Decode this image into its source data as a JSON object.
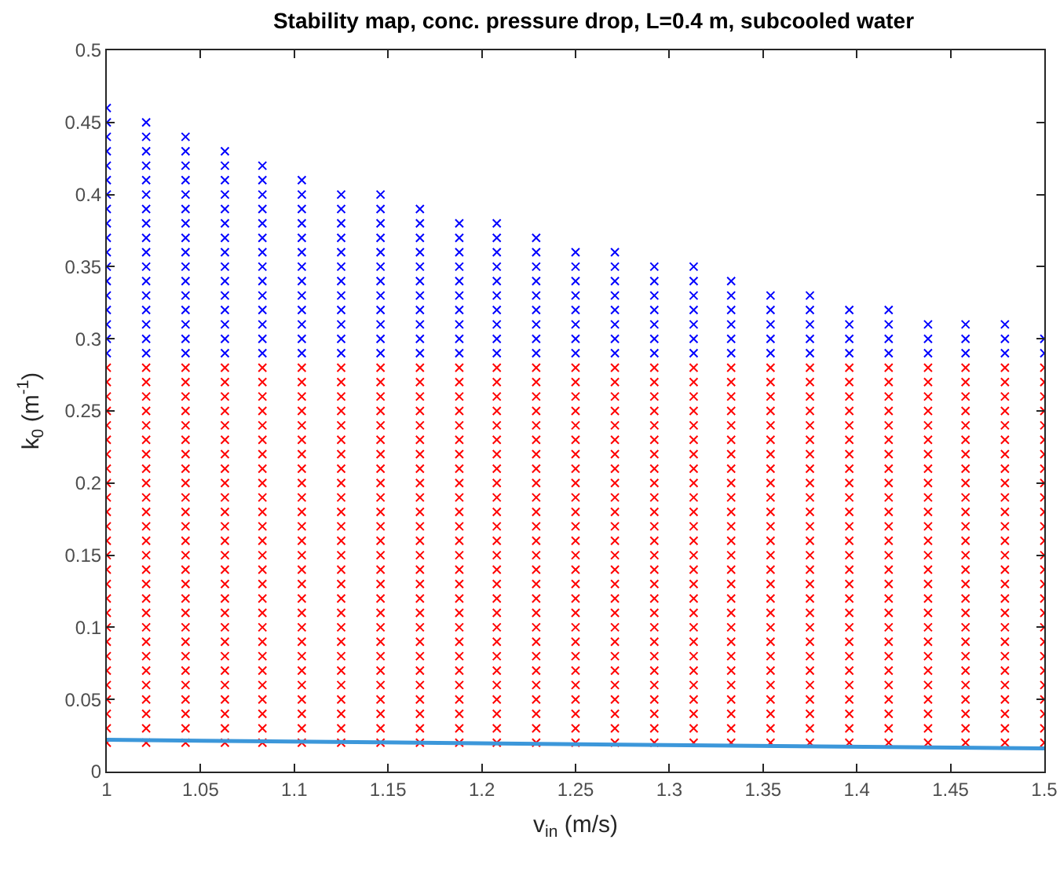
{
  "chart_data": {
    "type": "scatter",
    "title": "Stability map, conc. pressure drop, L=0.4 m, subcooled water",
    "xlabel": "v$_{in}$ (m/s)",
    "ylabel": "k$_{0}$ (m$^{-1}$)",
    "xlim": [
      1,
      1.5
    ],
    "xticks": [
      1,
      1.05,
      1.1,
      1.15,
      1.2,
      1.25,
      1.3,
      1.35,
      1.4,
      1.45,
      1.5
    ],
    "ylim": [
      0,
      0.5
    ],
    "yticks": [
      0,
      0.05,
      0.1,
      0.15,
      0.2,
      0.25,
      0.3,
      0.35,
      0.4,
      0.45,
      0.5
    ],
    "grid": false,
    "marker": "cross",
    "series": [
      {
        "color": "#ff0000",
        "x": [
          1,
          1,
          1,
          1,
          1,
          1,
          1,
          1,
          1,
          1,
          1,
          1,
          1,
          1,
          1,
          1,
          1,
          1,
          1,
          1,
          1,
          1,
          1,
          1,
          1,
          1,
          1
        ],
        "values": [
          0.02,
          0.03,
          0.04,
          0.05,
          0.06,
          0.07,
          0.08,
          0.09,
          0.1,
          0.11,
          0.12,
          0.13,
          0.14,
          0.15,
          0.16,
          0.17,
          0.18,
          0.19,
          0.2,
          0.21,
          0.22,
          0.23,
          0.24,
          0.25,
          0.26,
          0.27,
          0.28
        ]
      },
      {
        "color": "#ff0000",
        "x": [
          1.021,
          1.021,
          1.021,
          1.021,
          1.021,
          1.021,
          1.021,
          1.021,
          1.021,
          1.021,
          1.021,
          1.021,
          1.021,
          1.021,
          1.021,
          1.021,
          1.021,
          1.021,
          1.021,
          1.021,
          1.021,
          1.021,
          1.021,
          1.021,
          1.021,
          1.021,
          1.021
        ],
        "values": [
          0.02,
          0.03,
          0.04,
          0.05,
          0.06,
          0.07,
          0.08,
          0.09,
          0.1,
          0.11,
          0.12,
          0.13,
          0.14,
          0.15,
          0.16,
          0.17,
          0.18,
          0.19,
          0.2,
          0.21,
          0.22,
          0.23,
          0.24,
          0.25,
          0.26,
          0.27,
          0.28
        ]
      },
      {
        "color": "#ff0000",
        "x": [
          1.042,
          1.042,
          1.042,
          1.042,
          1.042,
          1.042,
          1.042,
          1.042,
          1.042,
          1.042,
          1.042,
          1.042,
          1.042,
          1.042,
          1.042,
          1.042,
          1.042,
          1.042,
          1.042,
          1.042,
          1.042,
          1.042,
          1.042,
          1.042,
          1.042,
          1.042,
          1.042
        ],
        "values": [
          0.02,
          0.03,
          0.04,
          0.05,
          0.06,
          0.07,
          0.08,
          0.09,
          0.1,
          0.11,
          0.12,
          0.13,
          0.14,
          0.15,
          0.16,
          0.17,
          0.18,
          0.19,
          0.2,
          0.21,
          0.22,
          0.23,
          0.24,
          0.25,
          0.26,
          0.27,
          0.28
        ]
      },
      {
        "color": "#ff0000",
        "x": [
          1.063,
          1.063,
          1.063,
          1.063,
          1.063,
          1.063,
          1.063,
          1.063,
          1.063,
          1.063,
          1.063,
          1.063,
          1.063,
          1.063,
          1.063,
          1.063,
          1.063,
          1.063,
          1.063,
          1.063,
          1.063,
          1.063,
          1.063,
          1.063,
          1.063,
          1.063,
          1.063
        ],
        "values": [
          0.02,
          0.03,
          0.04,
          0.05,
          0.06,
          0.07,
          0.08,
          0.09,
          0.1,
          0.11,
          0.12,
          0.13,
          0.14,
          0.15,
          0.16,
          0.17,
          0.18,
          0.19,
          0.2,
          0.21,
          0.22,
          0.23,
          0.24,
          0.25,
          0.26,
          0.27,
          0.28
        ]
      },
      {
        "color": "#ff0000",
        "x": [
          1.083,
          1.083,
          1.083,
          1.083,
          1.083,
          1.083,
          1.083,
          1.083,
          1.083,
          1.083,
          1.083,
          1.083,
          1.083,
          1.083,
          1.083,
          1.083,
          1.083,
          1.083,
          1.083,
          1.083,
          1.083,
          1.083,
          1.083,
          1.083,
          1.083,
          1.083,
          1.083
        ],
        "values": [
          0.02,
          0.03,
          0.04,
          0.05,
          0.06,
          0.07,
          0.08,
          0.09,
          0.1,
          0.11,
          0.12,
          0.13,
          0.14,
          0.15,
          0.16,
          0.17,
          0.18,
          0.19,
          0.2,
          0.21,
          0.22,
          0.23,
          0.24,
          0.25,
          0.26,
          0.27,
          0.28
        ]
      },
      {
        "color": "#ff0000",
        "x": [
          1.104,
          1.104,
          1.104,
          1.104,
          1.104,
          1.104,
          1.104,
          1.104,
          1.104,
          1.104,
          1.104,
          1.104,
          1.104,
          1.104,
          1.104,
          1.104,
          1.104,
          1.104,
          1.104,
          1.104,
          1.104,
          1.104,
          1.104,
          1.104,
          1.104,
          1.104,
          1.104
        ],
        "values": [
          0.02,
          0.03,
          0.04,
          0.05,
          0.06,
          0.07,
          0.08,
          0.09,
          0.1,
          0.11,
          0.12,
          0.13,
          0.14,
          0.15,
          0.16,
          0.17,
          0.18,
          0.19,
          0.2,
          0.21,
          0.22,
          0.23,
          0.24,
          0.25,
          0.26,
          0.27,
          0.28
        ]
      },
      {
        "color": "#ff0000",
        "x": [
          1.125,
          1.125,
          1.125,
          1.125,
          1.125,
          1.125,
          1.125,
          1.125,
          1.125,
          1.125,
          1.125,
          1.125,
          1.125,
          1.125,
          1.125,
          1.125,
          1.125,
          1.125,
          1.125,
          1.125,
          1.125,
          1.125,
          1.125,
          1.125,
          1.125,
          1.125,
          1.125
        ],
        "values": [
          0.02,
          0.03,
          0.04,
          0.05,
          0.06,
          0.07,
          0.08,
          0.09,
          0.1,
          0.11,
          0.12,
          0.13,
          0.14,
          0.15,
          0.16,
          0.17,
          0.18,
          0.19,
          0.2,
          0.21,
          0.22,
          0.23,
          0.24,
          0.25,
          0.26,
          0.27,
          0.28
        ]
      },
      {
        "color": "#ff0000",
        "x": [
          1.146,
          1.146,
          1.146,
          1.146,
          1.146,
          1.146,
          1.146,
          1.146,
          1.146,
          1.146,
          1.146,
          1.146,
          1.146,
          1.146,
          1.146,
          1.146,
          1.146,
          1.146,
          1.146,
          1.146,
          1.146,
          1.146,
          1.146,
          1.146,
          1.146,
          1.146,
          1.146
        ],
        "values": [
          0.02,
          0.03,
          0.04,
          0.05,
          0.06,
          0.07,
          0.08,
          0.09,
          0.1,
          0.11,
          0.12,
          0.13,
          0.14,
          0.15,
          0.16,
          0.17,
          0.18,
          0.19,
          0.2,
          0.21,
          0.22,
          0.23,
          0.24,
          0.25,
          0.26,
          0.27,
          0.28
        ]
      },
      {
        "color": "#ff0000",
        "x": [
          1.167,
          1.167,
          1.167,
          1.167,
          1.167,
          1.167,
          1.167,
          1.167,
          1.167,
          1.167,
          1.167,
          1.167,
          1.167,
          1.167,
          1.167,
          1.167,
          1.167,
          1.167,
          1.167,
          1.167,
          1.167,
          1.167,
          1.167,
          1.167,
          1.167,
          1.167,
          1.167
        ],
        "values": [
          0.02,
          0.03,
          0.04,
          0.05,
          0.06,
          0.07,
          0.08,
          0.09,
          0.1,
          0.11,
          0.12,
          0.13,
          0.14,
          0.15,
          0.16,
          0.17,
          0.18,
          0.19,
          0.2,
          0.21,
          0.22,
          0.23,
          0.24,
          0.25,
          0.26,
          0.27,
          0.28
        ]
      },
      {
        "color": "#ff0000",
        "x": [
          1.188,
          1.188,
          1.188,
          1.188,
          1.188,
          1.188,
          1.188,
          1.188,
          1.188,
          1.188,
          1.188,
          1.188,
          1.188,
          1.188,
          1.188,
          1.188,
          1.188,
          1.188,
          1.188,
          1.188,
          1.188,
          1.188,
          1.188,
          1.188,
          1.188,
          1.188,
          1.188
        ],
        "values": [
          0.02,
          0.03,
          0.04,
          0.05,
          0.06,
          0.07,
          0.08,
          0.09,
          0.1,
          0.11,
          0.12,
          0.13,
          0.14,
          0.15,
          0.16,
          0.17,
          0.18,
          0.19,
          0.2,
          0.21,
          0.22,
          0.23,
          0.24,
          0.25,
          0.26,
          0.27,
          0.28
        ]
      },
      {
        "color": "#ff0000",
        "x": [
          1.208,
          1.208,
          1.208,
          1.208,
          1.208,
          1.208,
          1.208,
          1.208,
          1.208,
          1.208,
          1.208,
          1.208,
          1.208,
          1.208,
          1.208,
          1.208,
          1.208,
          1.208,
          1.208,
          1.208,
          1.208,
          1.208,
          1.208,
          1.208,
          1.208,
          1.208,
          1.208
        ],
        "values": [
          0.02,
          0.03,
          0.04,
          0.05,
          0.06,
          0.07,
          0.08,
          0.09,
          0.1,
          0.11,
          0.12,
          0.13,
          0.14,
          0.15,
          0.16,
          0.17,
          0.18,
          0.19,
          0.2,
          0.21,
          0.22,
          0.23,
          0.24,
          0.25,
          0.26,
          0.27,
          0.28
        ]
      },
      {
        "color": "#ff0000",
        "x": [
          1.229,
          1.229,
          1.229,
          1.229,
          1.229,
          1.229,
          1.229,
          1.229,
          1.229,
          1.229,
          1.229,
          1.229,
          1.229,
          1.229,
          1.229,
          1.229,
          1.229,
          1.229,
          1.229,
          1.229,
          1.229,
          1.229,
          1.229,
          1.229,
          1.229,
          1.229,
          1.229
        ],
        "values": [
          0.02,
          0.03,
          0.04,
          0.05,
          0.06,
          0.07,
          0.08,
          0.09,
          0.1,
          0.11,
          0.12,
          0.13,
          0.14,
          0.15,
          0.16,
          0.17,
          0.18,
          0.19,
          0.2,
          0.21,
          0.22,
          0.23,
          0.24,
          0.25,
          0.26,
          0.27,
          0.28
        ]
      },
      {
        "color": "#ff0000",
        "x": [
          1.25,
          1.25,
          1.25,
          1.25,
          1.25,
          1.25,
          1.25,
          1.25,
          1.25,
          1.25,
          1.25,
          1.25,
          1.25,
          1.25,
          1.25,
          1.25,
          1.25,
          1.25,
          1.25,
          1.25,
          1.25,
          1.25,
          1.25,
          1.25,
          1.25,
          1.25,
          1.25
        ],
        "values": [
          0.02,
          0.03,
          0.04,
          0.05,
          0.06,
          0.07,
          0.08,
          0.09,
          0.1,
          0.11,
          0.12,
          0.13,
          0.14,
          0.15,
          0.16,
          0.17,
          0.18,
          0.19,
          0.2,
          0.21,
          0.22,
          0.23,
          0.24,
          0.25,
          0.26,
          0.27,
          0.28
        ]
      },
      {
        "color": "#ff0000",
        "x": [
          1.271,
          1.271,
          1.271,
          1.271,
          1.271,
          1.271,
          1.271,
          1.271,
          1.271,
          1.271,
          1.271,
          1.271,
          1.271,
          1.271,
          1.271,
          1.271,
          1.271,
          1.271,
          1.271,
          1.271,
          1.271,
          1.271,
          1.271,
          1.271,
          1.271,
          1.271,
          1.271
        ],
        "values": [
          0.02,
          0.03,
          0.04,
          0.05,
          0.06,
          0.07,
          0.08,
          0.09,
          0.1,
          0.11,
          0.12,
          0.13,
          0.14,
          0.15,
          0.16,
          0.17,
          0.18,
          0.19,
          0.2,
          0.21,
          0.22,
          0.23,
          0.24,
          0.25,
          0.26,
          0.27,
          0.28
        ]
      },
      {
        "color": "#ff0000",
        "x": [
          1.292,
          1.292,
          1.292,
          1.292,
          1.292,
          1.292,
          1.292,
          1.292,
          1.292,
          1.292,
          1.292,
          1.292,
          1.292,
          1.292,
          1.292,
          1.292,
          1.292,
          1.292,
          1.292,
          1.292,
          1.292,
          1.292,
          1.292,
          1.292,
          1.292,
          1.292,
          1.292
        ],
        "values": [
          0.02,
          0.03,
          0.04,
          0.05,
          0.06,
          0.07,
          0.08,
          0.09,
          0.1,
          0.11,
          0.12,
          0.13,
          0.14,
          0.15,
          0.16,
          0.17,
          0.18,
          0.19,
          0.2,
          0.21,
          0.22,
          0.23,
          0.24,
          0.25,
          0.26,
          0.27,
          0.28
        ]
      },
      {
        "color": "#ff0000",
        "x": [
          1.313,
          1.313,
          1.313,
          1.313,
          1.313,
          1.313,
          1.313,
          1.313,
          1.313,
          1.313,
          1.313,
          1.313,
          1.313,
          1.313,
          1.313,
          1.313,
          1.313,
          1.313,
          1.313,
          1.313,
          1.313,
          1.313,
          1.313,
          1.313,
          1.313,
          1.313,
          1.313
        ],
        "values": [
          0.02,
          0.03,
          0.04,
          0.05,
          0.06,
          0.07,
          0.08,
          0.09,
          0.1,
          0.11,
          0.12,
          0.13,
          0.14,
          0.15,
          0.16,
          0.17,
          0.18,
          0.19,
          0.2,
          0.21,
          0.22,
          0.23,
          0.24,
          0.25,
          0.26,
          0.27,
          0.28
        ]
      },
      {
        "color": "#ff0000",
        "x": [
          1.333,
          1.333,
          1.333,
          1.333,
          1.333,
          1.333,
          1.333,
          1.333,
          1.333,
          1.333,
          1.333,
          1.333,
          1.333,
          1.333,
          1.333,
          1.333,
          1.333,
          1.333,
          1.333,
          1.333,
          1.333,
          1.333,
          1.333,
          1.333,
          1.333,
          1.333,
          1.333
        ],
        "values": [
          0.02,
          0.03,
          0.04,
          0.05,
          0.06,
          0.07,
          0.08,
          0.09,
          0.1,
          0.11,
          0.12,
          0.13,
          0.14,
          0.15,
          0.16,
          0.17,
          0.18,
          0.19,
          0.2,
          0.21,
          0.22,
          0.23,
          0.24,
          0.25,
          0.26,
          0.27,
          0.28
        ]
      },
      {
        "color": "#ff0000",
        "x": [
          1.354,
          1.354,
          1.354,
          1.354,
          1.354,
          1.354,
          1.354,
          1.354,
          1.354,
          1.354,
          1.354,
          1.354,
          1.354,
          1.354,
          1.354,
          1.354,
          1.354,
          1.354,
          1.354,
          1.354,
          1.354,
          1.354,
          1.354,
          1.354,
          1.354,
          1.354,
          1.354
        ],
        "values": [
          0.02,
          0.03,
          0.04,
          0.05,
          0.06,
          0.07,
          0.08,
          0.09,
          0.1,
          0.11,
          0.12,
          0.13,
          0.14,
          0.15,
          0.16,
          0.17,
          0.18,
          0.19,
          0.2,
          0.21,
          0.22,
          0.23,
          0.24,
          0.25,
          0.26,
          0.27,
          0.28
        ]
      },
      {
        "color": "#ff0000",
        "x": [
          1.375,
          1.375,
          1.375,
          1.375,
          1.375,
          1.375,
          1.375,
          1.375,
          1.375,
          1.375,
          1.375,
          1.375,
          1.375,
          1.375,
          1.375,
          1.375,
          1.375,
          1.375,
          1.375,
          1.375,
          1.375,
          1.375,
          1.375,
          1.375,
          1.375,
          1.375,
          1.375
        ],
        "values": [
          0.02,
          0.03,
          0.04,
          0.05,
          0.06,
          0.07,
          0.08,
          0.09,
          0.1,
          0.11,
          0.12,
          0.13,
          0.14,
          0.15,
          0.16,
          0.17,
          0.18,
          0.19,
          0.2,
          0.21,
          0.22,
          0.23,
          0.24,
          0.25,
          0.26,
          0.27,
          0.28
        ]
      },
      {
        "color": "#ff0000",
        "x": [
          1.396,
          1.396,
          1.396,
          1.396,
          1.396,
          1.396,
          1.396,
          1.396,
          1.396,
          1.396,
          1.396,
          1.396,
          1.396,
          1.396,
          1.396,
          1.396,
          1.396,
          1.396,
          1.396,
          1.396,
          1.396,
          1.396,
          1.396,
          1.396,
          1.396,
          1.396,
          1.396
        ],
        "values": [
          0.02,
          0.03,
          0.04,
          0.05,
          0.06,
          0.07,
          0.08,
          0.09,
          0.1,
          0.11,
          0.12,
          0.13,
          0.14,
          0.15,
          0.16,
          0.17,
          0.18,
          0.19,
          0.2,
          0.21,
          0.22,
          0.23,
          0.24,
          0.25,
          0.26,
          0.27,
          0.28
        ]
      },
      {
        "color": "#ff0000",
        "x": [
          1.417,
          1.417,
          1.417,
          1.417,
          1.417,
          1.417,
          1.417,
          1.417,
          1.417,
          1.417,
          1.417,
          1.417,
          1.417,
          1.417,
          1.417,
          1.417,
          1.417,
          1.417,
          1.417,
          1.417,
          1.417,
          1.417,
          1.417,
          1.417,
          1.417,
          1.417,
          1.417
        ],
        "values": [
          0.02,
          0.03,
          0.04,
          0.05,
          0.06,
          0.07,
          0.08,
          0.09,
          0.1,
          0.11,
          0.12,
          0.13,
          0.14,
          0.15,
          0.16,
          0.17,
          0.18,
          0.19,
          0.2,
          0.21,
          0.22,
          0.23,
          0.24,
          0.25,
          0.26,
          0.27,
          0.28
        ]
      },
      {
        "color": "#ff0000",
        "x": [
          1.438,
          1.438,
          1.438,
          1.438,
          1.438,
          1.438,
          1.438,
          1.438,
          1.438,
          1.438,
          1.438,
          1.438,
          1.438,
          1.438,
          1.438,
          1.438,
          1.438,
          1.438,
          1.438,
          1.438,
          1.438,
          1.438,
          1.438,
          1.438,
          1.438,
          1.438,
          1.438
        ],
        "values": [
          0.02,
          0.03,
          0.04,
          0.05,
          0.06,
          0.07,
          0.08,
          0.09,
          0.1,
          0.11,
          0.12,
          0.13,
          0.14,
          0.15,
          0.16,
          0.17,
          0.18,
          0.19,
          0.2,
          0.21,
          0.22,
          0.23,
          0.24,
          0.25,
          0.26,
          0.27,
          0.28
        ]
      },
      {
        "color": "#ff0000",
        "x": [
          1.458,
          1.458,
          1.458,
          1.458,
          1.458,
          1.458,
          1.458,
          1.458,
          1.458,
          1.458,
          1.458,
          1.458,
          1.458,
          1.458,
          1.458,
          1.458,
          1.458,
          1.458,
          1.458,
          1.458,
          1.458,
          1.458,
          1.458,
          1.458,
          1.458,
          1.458,
          1.458
        ],
        "values": [
          0.02,
          0.03,
          0.04,
          0.05,
          0.06,
          0.07,
          0.08,
          0.09,
          0.1,
          0.11,
          0.12,
          0.13,
          0.14,
          0.15,
          0.16,
          0.17,
          0.18,
          0.19,
          0.2,
          0.21,
          0.22,
          0.23,
          0.24,
          0.25,
          0.26,
          0.27,
          0.28
        ]
      },
      {
        "color": "#ff0000",
        "x": [
          1.479,
          1.479,
          1.479,
          1.479,
          1.479,
          1.479,
          1.479,
          1.479,
          1.479,
          1.479,
          1.479,
          1.479,
          1.479,
          1.479,
          1.479,
          1.479,
          1.479,
          1.479,
          1.479,
          1.479,
          1.479,
          1.479,
          1.479,
          1.479,
          1.479,
          1.479,
          1.479
        ],
        "values": [
          0.02,
          0.03,
          0.04,
          0.05,
          0.06,
          0.07,
          0.08,
          0.09,
          0.1,
          0.11,
          0.12,
          0.13,
          0.14,
          0.15,
          0.16,
          0.17,
          0.18,
          0.19,
          0.2,
          0.21,
          0.22,
          0.23,
          0.24,
          0.25,
          0.26,
          0.27,
          0.28
        ]
      },
      {
        "color": "#ff0000",
        "x": [
          1.5,
          1.5,
          1.5,
          1.5,
          1.5,
          1.5,
          1.5,
          1.5,
          1.5,
          1.5,
          1.5,
          1.5,
          1.5,
          1.5,
          1.5,
          1.5,
          1.5,
          1.5,
          1.5,
          1.5,
          1.5,
          1.5,
          1.5,
          1.5,
          1.5,
          1.5,
          1.5
        ],
        "values": [
          0.02,
          0.03,
          0.04,
          0.05,
          0.06,
          0.07,
          0.08,
          0.09,
          0.1,
          0.11,
          0.12,
          0.13,
          0.14,
          0.15,
          0.16,
          0.17,
          0.18,
          0.19,
          0.2,
          0.21,
          0.22,
          0.23,
          0.24,
          0.25,
          0.26,
          0.27,
          0.28
        ]
      },
      {
        "color": "#0000ff",
        "x": [
          1,
          1,
          1,
          1,
          1,
          1,
          1,
          1,
          1,
          1,
          1,
          1,
          1,
          1,
          1,
          1,
          1,
          1
        ],
        "values": [
          0.29,
          0.3,
          0.31,
          0.32,
          0.33,
          0.34,
          0.35,
          0.36,
          0.37,
          0.38,
          0.39,
          0.4,
          0.41,
          0.42,
          0.43,
          0.44,
          0.45,
          0.46
        ]
      },
      {
        "color": "#0000ff",
        "x": [
          1.021,
          1.021,
          1.021,
          1.021,
          1.021,
          1.021,
          1.021,
          1.021,
          1.021,
          1.021,
          1.021,
          1.021,
          1.021,
          1.021,
          1.021,
          1.021,
          1.021
        ],
        "values": [
          0.29,
          0.3,
          0.31,
          0.32,
          0.33,
          0.34,
          0.35,
          0.36,
          0.37,
          0.38,
          0.39,
          0.4,
          0.41,
          0.42,
          0.43,
          0.44,
          0.45
        ]
      },
      {
        "color": "#0000ff",
        "x": [
          1.042,
          1.042,
          1.042,
          1.042,
          1.042,
          1.042,
          1.042,
          1.042,
          1.042,
          1.042,
          1.042,
          1.042,
          1.042,
          1.042,
          1.042,
          1.042
        ],
        "values": [
          0.29,
          0.3,
          0.31,
          0.32,
          0.33,
          0.34,
          0.35,
          0.36,
          0.37,
          0.38,
          0.39,
          0.4,
          0.41,
          0.42,
          0.43,
          0.44
        ]
      },
      {
        "color": "#0000ff",
        "x": [
          1.063,
          1.063,
          1.063,
          1.063,
          1.063,
          1.063,
          1.063,
          1.063,
          1.063,
          1.063,
          1.063,
          1.063,
          1.063,
          1.063,
          1.063
        ],
        "values": [
          0.29,
          0.3,
          0.31,
          0.32,
          0.33,
          0.34,
          0.35,
          0.36,
          0.37,
          0.38,
          0.39,
          0.4,
          0.41,
          0.42,
          0.43
        ]
      },
      {
        "color": "#0000ff",
        "x": [
          1.083,
          1.083,
          1.083,
          1.083,
          1.083,
          1.083,
          1.083,
          1.083,
          1.083,
          1.083,
          1.083,
          1.083,
          1.083,
          1.083
        ],
        "values": [
          0.29,
          0.3,
          0.31,
          0.32,
          0.33,
          0.34,
          0.35,
          0.36,
          0.37,
          0.38,
          0.39,
          0.4,
          0.41,
          0.42
        ]
      },
      {
        "color": "#0000ff",
        "x": [
          1.104,
          1.104,
          1.104,
          1.104,
          1.104,
          1.104,
          1.104,
          1.104,
          1.104,
          1.104,
          1.104,
          1.104,
          1.104
        ],
        "values": [
          0.29,
          0.3,
          0.31,
          0.32,
          0.33,
          0.34,
          0.35,
          0.36,
          0.37,
          0.38,
          0.39,
          0.4,
          0.41
        ]
      },
      {
        "color": "#0000ff",
        "x": [
          1.125,
          1.125,
          1.125,
          1.125,
          1.125,
          1.125,
          1.125,
          1.125,
          1.125,
          1.125,
          1.125,
          1.125
        ],
        "values": [
          0.29,
          0.3,
          0.31,
          0.32,
          0.33,
          0.34,
          0.35,
          0.36,
          0.37,
          0.38,
          0.39,
          0.4
        ]
      },
      {
        "color": "#0000ff",
        "x": [
          1.146,
          1.146,
          1.146,
          1.146,
          1.146,
          1.146,
          1.146,
          1.146,
          1.146,
          1.146,
          1.146,
          1.146
        ],
        "values": [
          0.29,
          0.3,
          0.31,
          0.32,
          0.33,
          0.34,
          0.35,
          0.36,
          0.37,
          0.38,
          0.39,
          0.4
        ]
      },
      {
        "color": "#0000ff",
        "x": [
          1.167,
          1.167,
          1.167,
          1.167,
          1.167,
          1.167,
          1.167,
          1.167,
          1.167,
          1.167,
          1.167
        ],
        "values": [
          0.29,
          0.3,
          0.31,
          0.32,
          0.33,
          0.34,
          0.35,
          0.36,
          0.37,
          0.38,
          0.39
        ]
      },
      {
        "color": "#0000ff",
        "x": [
          1.188,
          1.188,
          1.188,
          1.188,
          1.188,
          1.188,
          1.188,
          1.188,
          1.188,
          1.188
        ],
        "values": [
          0.29,
          0.3,
          0.31,
          0.32,
          0.33,
          0.34,
          0.35,
          0.36,
          0.37,
          0.38
        ]
      },
      {
        "color": "#0000ff",
        "x": [
          1.208,
          1.208,
          1.208,
          1.208,
          1.208,
          1.208,
          1.208,
          1.208,
          1.208,
          1.208
        ],
        "values": [
          0.29,
          0.3,
          0.31,
          0.32,
          0.33,
          0.34,
          0.35,
          0.36,
          0.37,
          0.38
        ]
      },
      {
        "color": "#0000ff",
        "x": [
          1.229,
          1.229,
          1.229,
          1.229,
          1.229,
          1.229,
          1.229,
          1.229,
          1.229
        ],
        "values": [
          0.29,
          0.3,
          0.31,
          0.32,
          0.33,
          0.34,
          0.35,
          0.36,
          0.37
        ]
      },
      {
        "color": "#0000ff",
        "x": [
          1.25,
          1.25,
          1.25,
          1.25,
          1.25,
          1.25,
          1.25,
          1.25
        ],
        "values": [
          0.29,
          0.3,
          0.31,
          0.32,
          0.33,
          0.34,
          0.35,
          0.36
        ]
      },
      {
        "color": "#0000ff",
        "x": [
          1.271,
          1.271,
          1.271,
          1.271,
          1.271,
          1.271,
          1.271,
          1.271
        ],
        "values": [
          0.29,
          0.3,
          0.31,
          0.32,
          0.33,
          0.34,
          0.35,
          0.36
        ]
      },
      {
        "color": "#0000ff",
        "x": [
          1.292,
          1.292,
          1.292,
          1.292,
          1.292,
          1.292,
          1.292
        ],
        "values": [
          0.29,
          0.3,
          0.31,
          0.32,
          0.33,
          0.34,
          0.35
        ]
      },
      {
        "color": "#0000ff",
        "x": [
          1.313,
          1.313,
          1.313,
          1.313,
          1.313,
          1.313,
          1.313
        ],
        "values": [
          0.29,
          0.3,
          0.31,
          0.32,
          0.33,
          0.34,
          0.35
        ]
      },
      {
        "color": "#0000ff",
        "x": [
          1.333,
          1.333,
          1.333,
          1.333,
          1.333,
          1.333
        ],
        "values": [
          0.29,
          0.3,
          0.31,
          0.32,
          0.33,
          0.34
        ]
      },
      {
        "color": "#0000ff",
        "x": [
          1.354,
          1.354,
          1.354,
          1.354,
          1.354
        ],
        "values": [
          0.29,
          0.3,
          0.31,
          0.32,
          0.33
        ]
      },
      {
        "color": "#0000ff",
        "x": [
          1.375,
          1.375,
          1.375,
          1.375,
          1.375
        ],
        "values": [
          0.29,
          0.3,
          0.31,
          0.32,
          0.33
        ]
      },
      {
        "color": "#0000ff",
        "x": [
          1.396,
          1.396,
          1.396,
          1.396
        ],
        "values": [
          0.29,
          0.3,
          0.31,
          0.32
        ]
      },
      {
        "color": "#0000ff",
        "x": [
          1.417,
          1.417,
          1.417,
          1.417
        ],
        "values": [
          0.29,
          0.3,
          0.31,
          0.32
        ]
      },
      {
        "color": "#0000ff",
        "x": [
          1.438,
          1.438,
          1.438
        ],
        "values": [
          0.29,
          0.3,
          0.31
        ]
      },
      {
        "color": "#0000ff",
        "x": [
          1.458,
          1.458,
          1.458
        ],
        "values": [
          0.29,
          0.3,
          0.31
        ]
      },
      {
        "color": "#0000ff",
        "x": [
          1.479,
          1.479,
          1.479
        ],
        "values": [
          0.29,
          0.3,
          0.31
        ]
      },
      {
        "color": "#0000ff",
        "x": [
          1.5,
          1.5
        ],
        "values": [
          0.29,
          0.3
        ]
      },
      {
        "type": "line",
        "marker": "none",
        "color": "#3c97da",
        "x": [
          1,
          1.5
        ],
        "values": [
          0.022,
          0.016
        ]
      }
    ]
  }
}
